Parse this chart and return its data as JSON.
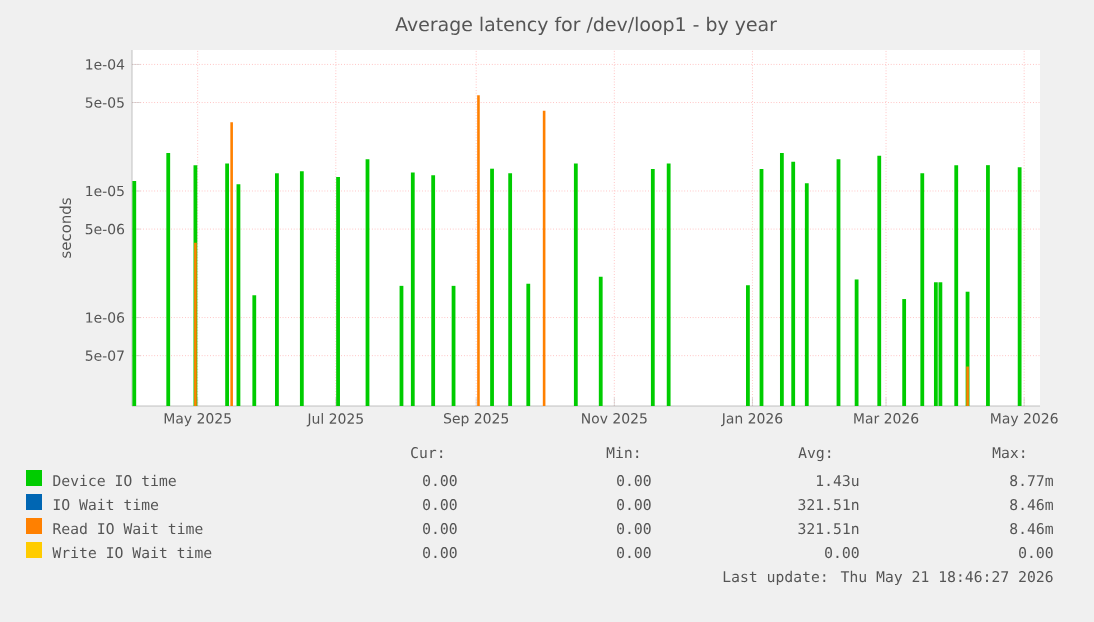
{
  "chart_data": {
    "type": "bar",
    "title": "Average latency for /dev/loop1 - by year",
    "ylabel": "seconds",
    "log": "y",
    "grid": true,
    "legend": "bottom",
    "xlim": [
      "2025-04-02",
      "2026-05-08"
    ],
    "xticks": [
      {
        "value": "2025-05-01",
        "label": "May 2025"
      },
      {
        "value": "2025-07-01",
        "label": "Jul 2025"
      },
      {
        "value": "2025-09-01",
        "label": "Sep 2025"
      },
      {
        "value": "2025-11-01",
        "label": "Nov 2025"
      },
      {
        "value": "2026-01-01",
        "label": "Jan 2026"
      },
      {
        "value": "2026-03-01",
        "label": "Mar 2026"
      },
      {
        "value": "2026-05-01",
        "label": "May 2026"
      }
    ],
    "ylim": [
      2e-07,
      0.00013
    ],
    "yticks": [
      {
        "value": 5e-07,
        "label": "5e-07"
      },
      {
        "value": 1e-06,
        "label": "1e-06"
      },
      {
        "value": 5e-06,
        "label": "5e-06"
      },
      {
        "value": 1e-05,
        "label": "1e-05"
      },
      {
        "value": 5e-05,
        "label": "5e-05"
      },
      {
        "value": 0.0001,
        "label": "1e-04"
      }
    ],
    "series": [
      {
        "name": "Device IO time",
        "color": "#00cc00",
        "x": [
          "2025-04-03",
          "2025-04-18",
          "2025-04-30",
          "2025-05-14",
          "2025-05-19",
          "2025-05-26",
          "2025-06-05",
          "2025-06-16",
          "2025-07-02",
          "2025-07-15",
          "2025-07-30",
          "2025-08-04",
          "2025-08-13",
          "2025-08-22",
          "2025-09-02",
          "2025-09-08",
          "2025-09-16",
          "2025-09-24",
          "2025-10-01",
          "2025-10-15",
          "2025-10-26",
          "2025-11-18",
          "2025-11-25",
          "2025-12-30",
          "2026-01-05",
          "2026-01-14",
          "2026-01-19",
          "2026-01-25",
          "2026-02-08",
          "2026-02-16",
          "2026-02-26",
          "2026-03-09",
          "2026-03-17",
          "2026-03-23",
          "2026-03-25",
          "2026-04-01",
          "2026-04-06",
          "2026-04-15",
          "2026-04-29"
        ],
        "values": [
          1.2e-05,
          2e-05,
          1.6e-05,
          1.65e-05,
          1.13e-05,
          1.5e-06,
          1.38e-05,
          1.43e-05,
          1.29e-05,
          1.78e-05,
          1.78e-06,
          1.4e-05,
          1.33e-05,
          1.78e-06,
          null,
          1.5e-05,
          1.38e-05,
          1.85e-06,
          null,
          1.65e-05,
          2.1e-06,
          1.49e-05,
          1.65e-05,
          1.8e-06,
          1.49e-05,
          2e-05,
          1.7e-05,
          1.15e-05,
          1.78e-05,
          2e-06,
          1.9e-05,
          1.4e-06,
          1.38e-05,
          1.9e-06,
          1.9e-06,
          1.6e-05,
          1.6e-06,
          1.6e-05,
          1.54e-05
        ]
      },
      {
        "name": "IO Wait time",
        "color": "#0066b3"
      },
      {
        "name": "Read IO Wait time",
        "color": "#ff8000",
        "x": [
          "2025-04-30",
          "2025-05-16",
          "2025-09-02",
          "2025-10-01",
          "2026-04-06"
        ],
        "values": [
          3.9e-06,
          3.5e-05,
          5.7e-05,
          4.3e-05,
          4.1e-07
        ]
      },
      {
        "name": "Write IO Wait time",
        "color": "#ffcc00"
      }
    ],
    "annotations": [
      "Cur:",
      "Min:",
      "Avg:",
      "Max:",
      "0.00",
      "0.00",
      "1.43u",
      "8.77m",
      "0.00",
      "0.00",
      "321.51n",
      "8.46m",
      "0.00",
      "0.00",
      "321.51n",
      "8.46m",
      "0.00",
      "0.00",
      "0.00",
      "0.00",
      "Last update: Thu May 21 18:46:27 2026"
    ]
  }
}
